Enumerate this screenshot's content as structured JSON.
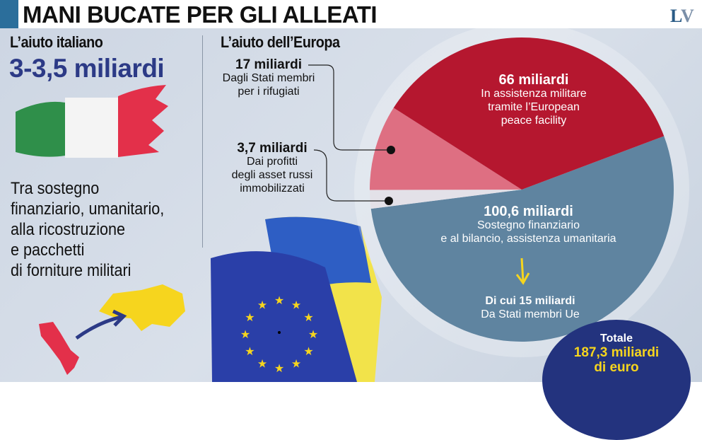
{
  "header": {
    "title": "MANI BUCATE PER GLI ALLEATI",
    "logo": "LV"
  },
  "italy": {
    "heading": "L’aiuto italiano",
    "amount": "3-3,5 miliardi",
    "description": [
      "Tra sostegno",
      "finanziario, umanitario,",
      "alla ricostruzione",
      "e pacchetti",
      "di forniture militari"
    ]
  },
  "europe": {
    "heading": "L’aiuto dell’Europa"
  },
  "colors": {
    "red": "#b5172f",
    "pink": "#de6f82",
    "light": "#e3e1e8",
    "blue": "#5f84a0",
    "navy": "#23337e",
    "yellow": "#f6d51e"
  },
  "chart_data": {
    "type": "pie",
    "unit": "miliardi di euro",
    "slices": [
      {
        "value": 100.6,
        "label": "100,6 miliardi",
        "desc": [
          "Sostegno finanziario",
          "e al bilancio, assistenza umanitaria"
        ],
        "color": "#5f84a0",
        "sub_label": "Di cui 15 miliardi",
        "sub_desc": "Da Stati membri Ue"
      },
      {
        "value": 3.7,
        "label": "3,7 miliardi",
        "desc": [
          "Dai profitti",
          "degli asset russi",
          "immobilizzati"
        ],
        "color": "#e3e1e8"
      },
      {
        "value": 17,
        "label": "17 miliardi",
        "desc": [
          "Dagli Stati membri",
          "per i rifugiati"
        ],
        "color": "#de6f82"
      },
      {
        "value": 66,
        "label": "66 miliardi",
        "desc": [
          "In assistenza militare",
          "tramite l’European",
          "peace facility"
        ],
        "color": "#b5172f"
      }
    ],
    "total": {
      "label": "Totale",
      "value": "187,3 miliardi",
      "unit": "di euro"
    }
  }
}
